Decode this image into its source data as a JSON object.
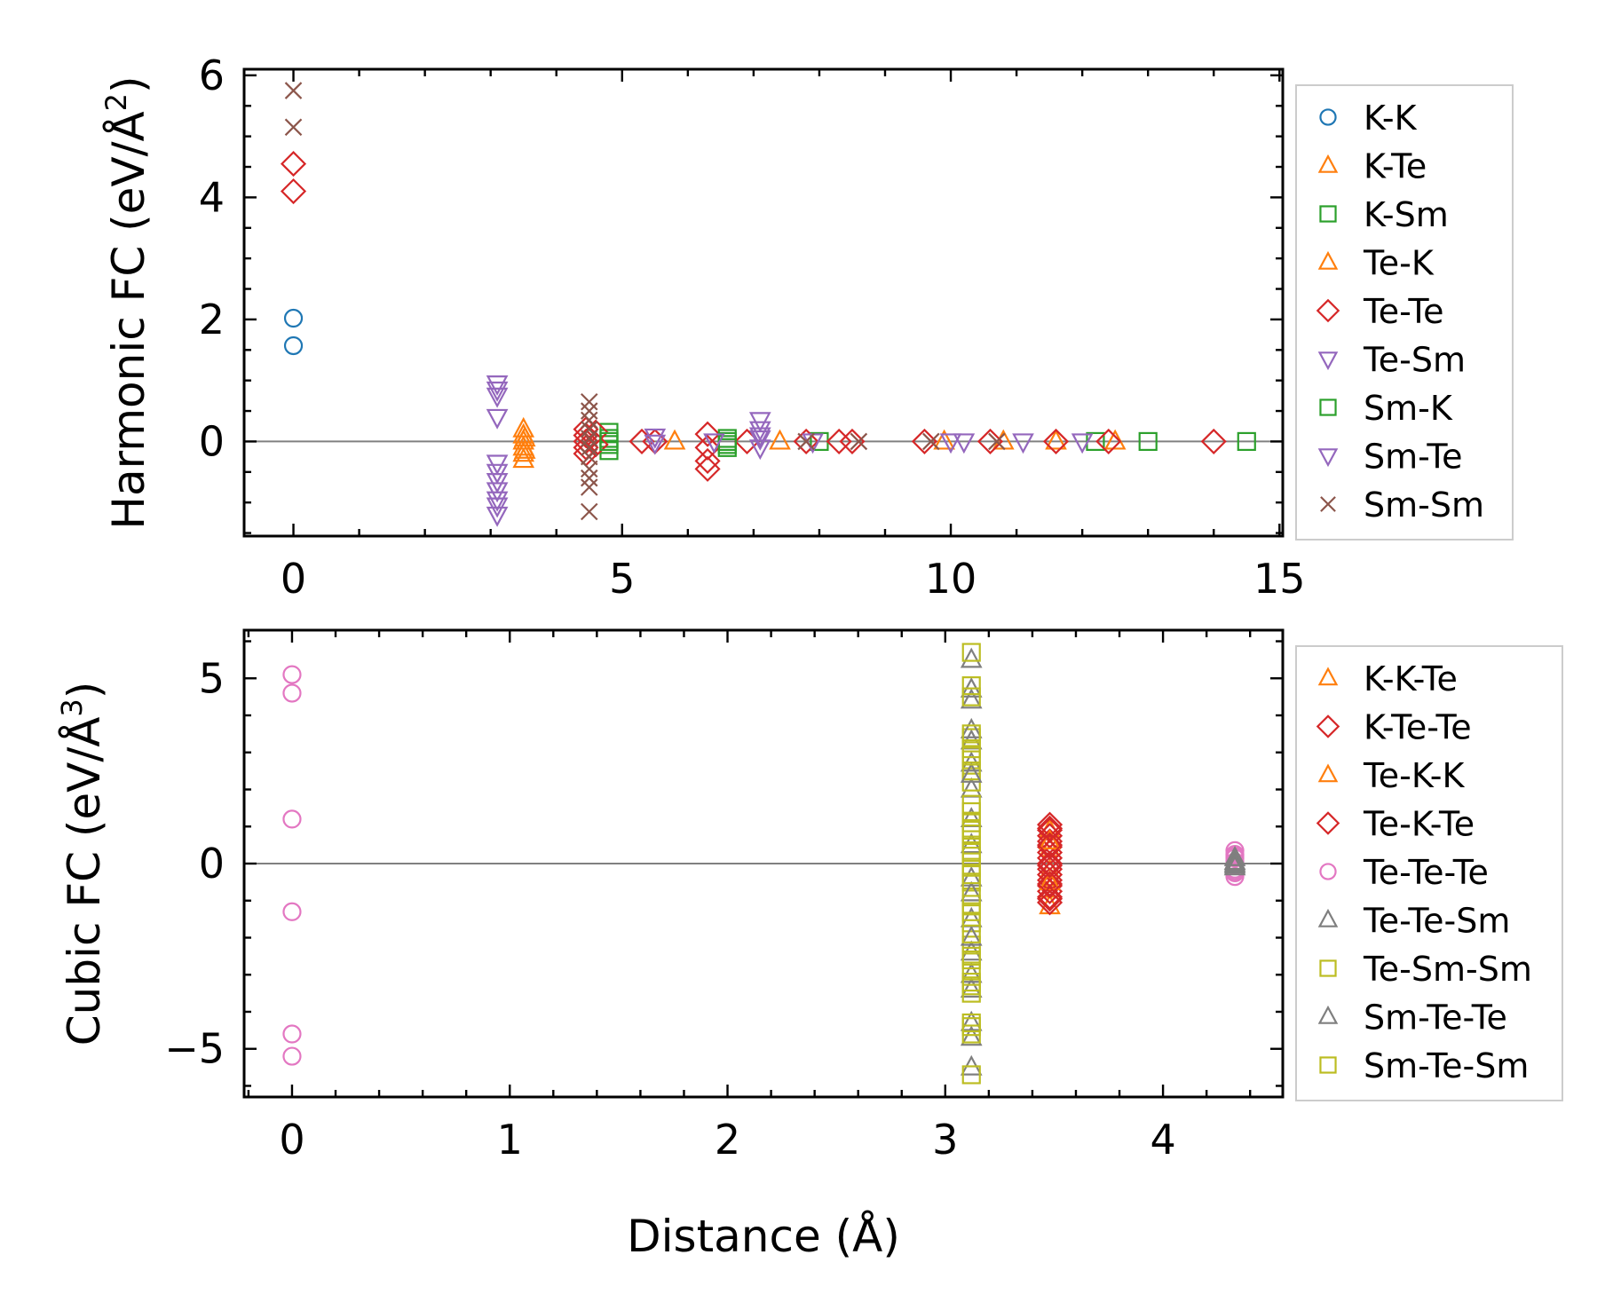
{
  "chart_data": [
    {
      "type": "scatter",
      "ylabel": "Harmonic FC (eV/Å²)",
      "ylabel_main": "Harmonic FC (eV/Å",
      "ylabel_sup": "2",
      "ylabel_end": ")",
      "xlim": [
        -0.75,
        15.05
      ],
      "ylim": [
        -1.55,
        6.1
      ],
      "xticks": [
        0,
        5,
        10,
        15
      ],
      "xtick_labels": [
        "0",
        "5",
        "10",
        "15"
      ],
      "yticks": [
        0,
        2,
        4,
        6
      ],
      "ytick_labels": [
        "0",
        "2",
        "4",
        "6"
      ],
      "legend": "right-outside",
      "zero_line": true,
      "series": [
        {
          "name": "K-K",
          "marker": "o",
          "color": "#1f77b4",
          "points": [
            [
              0,
              2.02
            ],
            [
              0,
              1.57
            ]
          ]
        },
        {
          "name": "K-Te",
          "marker": "^",
          "color": "#ff7f0e",
          "points": [
            [
              3.5,
              0.2
            ],
            [
              3.5,
              0.1
            ],
            [
              3.5,
              0.0
            ],
            [
              3.5,
              -0.1
            ],
            [
              3.5,
              -0.2
            ],
            [
              3.5,
              -0.3
            ],
            [
              3.52,
              0.05
            ],
            [
              3.52,
              -0.15
            ]
          ]
        },
        {
          "name": "K-Sm",
          "marker": "s",
          "color": "#2ca02c",
          "points": [
            [
              4.8,
              0.15
            ],
            [
              4.8,
              0.05
            ],
            [
              4.8,
              -0.05
            ],
            [
              4.8,
              -0.15
            ],
            [
              6.6,
              0.05
            ],
            [
              6.6,
              -0.05
            ],
            [
              6.6,
              -0.1
            ],
            [
              8.0,
              0.0
            ],
            [
              12.2,
              0.0
            ],
            [
              13.0,
              0.0
            ],
            [
              14.5,
              0.0
            ]
          ]
        },
        {
          "name": "Te-K",
          "marker": "^",
          "color": "#ff7f0e",
          "points": [
            [
              5.8,
              0.0
            ],
            [
              7.4,
              0.0
            ],
            [
              9.9,
              0.0
            ],
            [
              10.8,
              0.0
            ],
            [
              11.6,
              0.0
            ],
            [
              12.5,
              0.0
            ]
          ]
        },
        {
          "name": "Te-Te",
          "marker": "D",
          "color": "#d62728",
          "points": [
            [
              0,
              4.55
            ],
            [
              0,
              4.1
            ],
            [
              4.45,
              0.2
            ],
            [
              4.45,
              0.1
            ],
            [
              4.45,
              0.0
            ],
            [
              4.45,
              -0.1
            ],
            [
              4.45,
              -0.2
            ],
            [
              4.6,
              0.15
            ],
            [
              4.6,
              -0.05
            ],
            [
              5.3,
              0.0
            ],
            [
              5.5,
              0.0
            ],
            [
              6.3,
              0.12
            ],
            [
              6.3,
              -0.1
            ],
            [
              6.3,
              -0.32
            ],
            [
              6.3,
              -0.45
            ],
            [
              6.9,
              0.0
            ],
            [
              7.8,
              0.0
            ],
            [
              8.3,
              0.0
            ],
            [
              8.5,
              0.0
            ],
            [
              9.6,
              0.0
            ],
            [
              10.6,
              0.0
            ],
            [
              11.6,
              0.0
            ],
            [
              12.4,
              0.0
            ],
            [
              14.0,
              0.0
            ]
          ]
        },
        {
          "name": "Te-Sm",
          "marker": "v",
          "color": "#9467bd",
          "points": [
            [
              3.1,
              0.95
            ],
            [
              3.1,
              0.85
            ],
            [
              3.1,
              0.75
            ],
            [
              3.1,
              0.4
            ],
            [
              3.1,
              -0.35
            ],
            [
              3.1,
              -0.5
            ],
            [
              3.1,
              -0.65
            ],
            [
              3.1,
              -0.8
            ],
            [
              3.1,
              -0.95
            ],
            [
              3.1,
              -1.05
            ],
            [
              3.1,
              -1.2
            ],
            [
              5.5,
              0.08
            ],
            [
              5.5,
              -0.02
            ],
            [
              7.1,
              0.35
            ],
            [
              7.1,
              0.2
            ],
            [
              7.1,
              0.05
            ],
            [
              7.1,
              -0.1
            ],
            [
              10.0,
              0.0
            ],
            [
              11.1,
              0.0
            ]
          ]
        },
        {
          "name": "Sm-K",
          "marker": "s",
          "color": "#2ca02c",
          "points": [
            [
              4.8,
              0.0
            ],
            [
              6.6,
              0.0
            ]
          ]
        },
        {
          "name": "Sm-Te",
          "marker": "v",
          "color": "#9467bd",
          "points": [
            [
              6.4,
              0.0
            ],
            [
              7.1,
              0.1
            ],
            [
              7.9,
              0.0
            ],
            [
              10.2,
              0.0
            ],
            [
              12.0,
              0.0
            ]
          ]
        },
        {
          "name": "Sm-Sm",
          "marker": "x",
          "color": "#8c564b",
          "points": [
            [
              0,
              5.75
            ],
            [
              0,
              5.15
            ],
            [
              4.5,
              0.65
            ],
            [
              4.5,
              0.5
            ],
            [
              4.5,
              0.35
            ],
            [
              4.5,
              0.2
            ],
            [
              4.5,
              0.05
            ],
            [
              4.5,
              -0.1
            ],
            [
              4.5,
              -0.25
            ],
            [
              4.5,
              -0.45
            ],
            [
              4.5,
              -0.6
            ],
            [
              4.5,
              -0.75
            ],
            [
              4.5,
              -1.15
            ],
            [
              7.8,
              0.0
            ],
            [
              8.6,
              0.0
            ],
            [
              9.7,
              0.0
            ],
            [
              10.7,
              0.0
            ]
          ]
        }
      ]
    },
    {
      "type": "scatter",
      "xlabel": "Distance (Å)",
      "ylabel": "Cubic FC (eV/Å³)",
      "ylabel_main": "Cubic FC (eV/Å",
      "ylabel_sup": "3",
      "ylabel_end": ")",
      "xlim": [
        -0.22,
        4.55
      ],
      "ylim": [
        -6.3,
        6.3
      ],
      "xticks": [
        0,
        1,
        2,
        3,
        4
      ],
      "xtick_labels": [
        "0",
        "1",
        "2",
        "3",
        "4"
      ],
      "yticks": [
        -5,
        0,
        5
      ],
      "ytick_labels": [
        "−5",
        "0",
        "5"
      ],
      "legend": "right-outside",
      "zero_line": true,
      "series": [
        {
          "name": "K-K-Te",
          "marker": "^",
          "color": "#ff7f0e",
          "points": [
            [
              3.48,
              0.9
            ],
            [
              3.48,
              0.4
            ],
            [
              3.48,
              -0.2
            ],
            [
              3.48,
              -0.7
            ],
            [
              3.48,
              -1.15
            ]
          ]
        },
        {
          "name": "K-Te-Te",
          "marker": "D",
          "color": "#d62728",
          "points": [
            [
              3.48,
              1.05
            ],
            [
              3.48,
              0.9
            ],
            [
              3.48,
              0.75
            ],
            [
              3.48,
              0.6
            ],
            [
              3.48,
              0.45
            ],
            [
              3.48,
              0.3
            ],
            [
              3.48,
              0.15
            ],
            [
              3.48,
              0.0
            ],
            [
              3.48,
              -0.15
            ],
            [
              3.48,
              -0.3
            ],
            [
              3.48,
              -0.45
            ],
            [
              3.48,
              -0.6
            ],
            [
              3.48,
              -0.75
            ],
            [
              3.48,
              -0.9
            ],
            [
              3.48,
              -1.05
            ]
          ]
        },
        {
          "name": "Te-K-K",
          "marker": "^",
          "color": "#ff7f0e",
          "points": [
            [
              3.48,
              0.6
            ],
            [
              3.48,
              -0.5
            ]
          ]
        },
        {
          "name": "Te-K-Te",
          "marker": "D",
          "color": "#d62728",
          "points": [
            [
              3.48,
              0.95
            ],
            [
              3.48,
              0.5
            ],
            [
              3.48,
              -0.05
            ],
            [
              3.48,
              -0.55
            ],
            [
              3.48,
              -0.95
            ]
          ]
        },
        {
          "name": "Te-Te-Te",
          "marker": "o",
          "color": "#e377c2",
          "points": [
            [
              0,
              5.1
            ],
            [
              0,
              4.6
            ],
            [
              0,
              1.2
            ],
            [
              0,
              -1.3
            ],
            [
              0,
              -4.6
            ],
            [
              0,
              -5.2
            ],
            [
              4.33,
              0.35
            ],
            [
              4.33,
              0.25
            ],
            [
              4.33,
              0.15
            ],
            [
              4.33,
              0.05
            ],
            [
              4.33,
              -0.05
            ],
            [
              4.33,
              -0.15
            ],
            [
              4.33,
              -0.25
            ],
            [
              4.33,
              -0.35
            ],
            [
              4.33,
              0.2
            ],
            [
              4.33,
              -0.2
            ]
          ]
        },
        {
          "name": "Te-Te-Sm",
          "marker": "^",
          "color": "#7f7f7f",
          "points": [
            [
              3.12,
              5.5
            ],
            [
              3.12,
              4.7
            ],
            [
              3.12,
              4.4
            ],
            [
              3.12,
              3.3
            ],
            [
              3.12,
              2.7
            ],
            [
              3.12,
              2.0
            ],
            [
              3.12,
              1.2
            ],
            [
              3.12,
              0.5
            ],
            [
              3.12,
              -0.4
            ],
            [
              3.12,
              -1.5
            ],
            [
              3.12,
              -2.4
            ],
            [
              3.12,
              -3.0
            ],
            [
              3.12,
              -3.4
            ],
            [
              3.12,
              -4.3
            ],
            [
              3.12,
              -4.7
            ],
            [
              3.12,
              -5.5
            ],
            [
              4.33,
              0.15
            ],
            [
              4.33,
              0.0
            ],
            [
              4.33,
              -0.1
            ]
          ]
        },
        {
          "name": "Te-Sm-Sm",
          "marker": "s",
          "color": "#bcbd22",
          "points": [
            [
              3.12,
              5.7
            ],
            [
              3.12,
              4.8
            ],
            [
              3.12,
              4.5
            ],
            [
              3.12,
              3.4
            ],
            [
              3.12,
              3.1
            ],
            [
              3.12,
              2.8
            ],
            [
              3.12,
              2.5
            ],
            [
              3.12,
              2.2
            ],
            [
              3.12,
              1.4
            ],
            [
              3.12,
              1.1
            ],
            [
              3.12,
              0.8
            ],
            [
              3.12,
              0.5
            ],
            [
              3.12,
              0.2
            ],
            [
              3.12,
              -0.1
            ],
            [
              3.12,
              -0.5
            ],
            [
              3.12,
              -0.9
            ],
            [
              3.12,
              -1.3
            ],
            [
              3.12,
              -1.6
            ],
            [
              3.12,
              -2.2
            ],
            [
              3.12,
              -2.6
            ],
            [
              3.12,
              -2.9
            ],
            [
              3.12,
              -3.2
            ],
            [
              3.12,
              -3.5
            ],
            [
              3.12,
              -4.3
            ],
            [
              3.12,
              -4.6
            ],
            [
              3.12,
              -5.7
            ]
          ]
        },
        {
          "name": "Sm-Te-Te",
          "marker": "^",
          "color": "#7f7f7f",
          "points": [
            [
              3.12,
              3.6
            ],
            [
              3.12,
              2.4
            ],
            [
              3.12,
              -0.8
            ],
            [
              3.12,
              -2.0
            ],
            [
              4.33,
              0.05
            ],
            [
              4.33,
              -0.05
            ]
          ]
        },
        {
          "name": "Sm-Te-Sm",
          "marker": "s",
          "color": "#bcbd22",
          "points": [
            [
              3.12,
              3.5
            ],
            [
              3.12,
              2.9
            ],
            [
              3.12,
              1.6
            ],
            [
              3.12,
              0.9
            ],
            [
              3.12,
              0.3
            ],
            [
              3.12,
              -0.3
            ],
            [
              3.12,
              -1.1
            ],
            [
              3.12,
              -1.9
            ],
            [
              3.12,
              -2.5
            ],
            [
              3.12,
              -3.3
            ],
            [
              3.12,
              -4.4
            ]
          ]
        }
      ]
    }
  ]
}
